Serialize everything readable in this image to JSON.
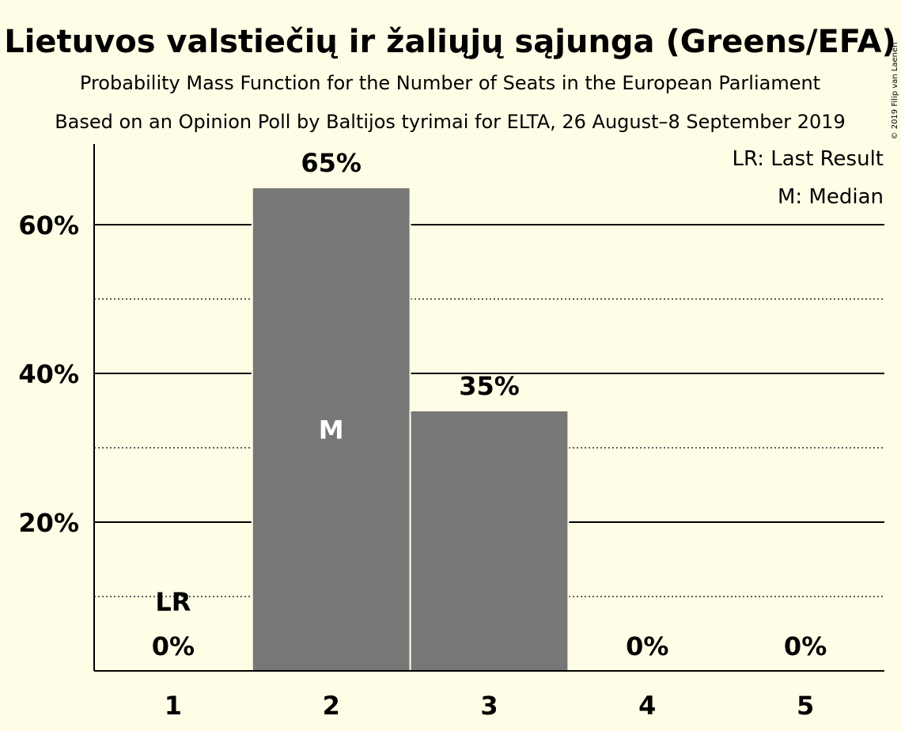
{
  "chart_data": {
    "type": "bar",
    "title": "Lietuvos valstiečių ir žaliųjų sąjunga (Greens/EFA)",
    "subtitle": "Probability Mass Function for the Number of Seats in the European Parliament",
    "subtitle2": "Based on an Opinion Poll by Baltijos tyrimai for ELTA, 26 August–8 September 2019",
    "copyright": "© 2019 Filip van Laenen",
    "categories": [
      "1",
      "2",
      "3",
      "4",
      "5"
    ],
    "values": [
      0,
      65,
      35,
      0,
      0
    ],
    "value_labels": [
      "0%",
      "65%",
      "35%",
      "0%",
      "0%"
    ],
    "ylim": [
      0,
      70
    ],
    "yticks": [
      {
        "value": 20,
        "label": "20%"
      },
      {
        "value": 40,
        "label": "40%"
      },
      {
        "value": 60,
        "label": "60%"
      }
    ],
    "minor_gridlines": [
      10,
      30,
      50
    ],
    "last_result": {
      "category": "1",
      "label": "LR"
    },
    "median": {
      "category": "2",
      "label": "M"
    },
    "legend": [
      "LR: Last Result",
      "M: Median"
    ],
    "legend_position": "top-right",
    "bar_color": "#777777",
    "background_color": "#fffde6"
  }
}
